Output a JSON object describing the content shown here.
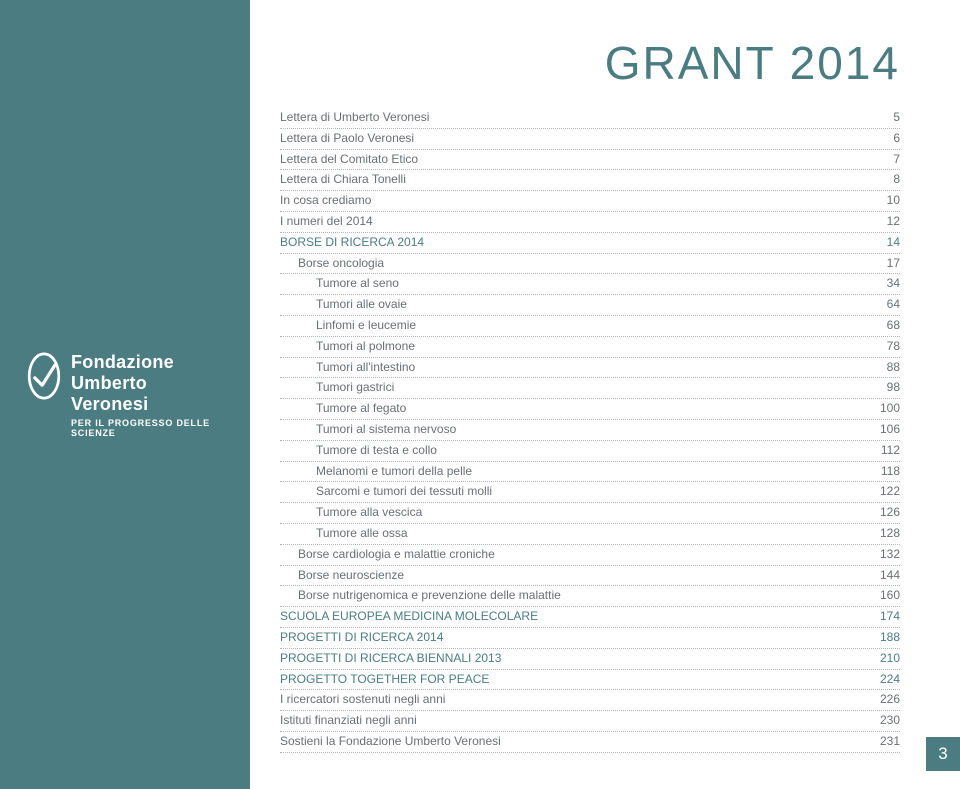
{
  "colors": {
    "teal": "#4a7c82",
    "white": "#ffffff",
    "text_gray": "#6a6f73",
    "dot_gray": "#b0b7bb"
  },
  "title": "GRANT 2014",
  "page_number": "3",
  "logo": {
    "line1": "Fondazione",
    "line2": "Umberto Veronesi",
    "tagline": "PER IL PROGRESSO DELLE SCIENZE"
  },
  "toc": [
    {
      "label": "Lettera di Umberto Veronesi",
      "page": "5",
      "level": 0,
      "teal": false
    },
    {
      "label": "Lettera di Paolo Veronesi",
      "page": "6",
      "level": 0,
      "teal": false
    },
    {
      "label": "Lettera del Comitato Etico",
      "page": "7",
      "level": 0,
      "teal": false
    },
    {
      "label": "Lettera di Chiara Tonelli",
      "page": "8",
      "level": 0,
      "teal": false
    },
    {
      "label": "In cosa crediamo",
      "page": "10",
      "level": 0,
      "teal": false
    },
    {
      "label": "I numeri del 2014",
      "page": "12",
      "level": 0,
      "teal": false
    },
    {
      "label": "BORSE DI RICERCA 2014",
      "page": "14",
      "level": 0,
      "teal": true
    },
    {
      "label": "Borse oncologia",
      "page": "17",
      "level": 1,
      "teal": false
    },
    {
      "label": "Tumore al seno",
      "page": "34",
      "level": 2,
      "teal": false
    },
    {
      "label": "Tumori alle ovaie",
      "page": "64",
      "level": 2,
      "teal": false
    },
    {
      "label": "Linfomi e leucemie",
      "page": "68",
      "level": 2,
      "teal": false
    },
    {
      "label": "Tumori al polmone",
      "page": "78",
      "level": 2,
      "teal": false
    },
    {
      "label": "Tumori all'intestino",
      "page": "88",
      "level": 2,
      "teal": false
    },
    {
      "label": "Tumori gastrici",
      "page": "98",
      "level": 2,
      "teal": false
    },
    {
      "label": "Tumore al fegato",
      "page": "100",
      "level": 2,
      "teal": false
    },
    {
      "label": "Tumori al sistema nervoso",
      "page": "106",
      "level": 2,
      "teal": false
    },
    {
      "label": "Tumore di testa e collo",
      "page": "112",
      "level": 2,
      "teal": false
    },
    {
      "label": "Melanomi e tumori della pelle",
      "page": "118",
      "level": 2,
      "teal": false
    },
    {
      "label": "Sarcomi e tumori dei tessuti molli",
      "page": "122",
      "level": 2,
      "teal": false
    },
    {
      "label": "Tumore alla vescica",
      "page": "126",
      "level": 2,
      "teal": false
    },
    {
      "label": "Tumore alle ossa",
      "page": "128",
      "level": 2,
      "teal": false
    },
    {
      "label": "Borse cardiologia e malattie croniche",
      "page": "132",
      "level": 1,
      "teal": false
    },
    {
      "label": "Borse neuroscienze",
      "page": "144",
      "level": 1,
      "teal": false
    },
    {
      "label": "Borse nutrigenomica e prevenzione delle malattie",
      "page": "160",
      "level": 1,
      "teal": false
    },
    {
      "label": "SCUOLA EUROPEA MEDICINA MOLECOLARE",
      "page": "174",
      "level": 0,
      "teal": true
    },
    {
      "label": "PROGETTI DI RICERCA 2014",
      "page": "188",
      "level": 0,
      "teal": true
    },
    {
      "label": "PROGETTI DI RICERCA BIENNALI 2013",
      "page": "210",
      "level": 0,
      "teal": true
    },
    {
      "label": "PROGETTO TOGETHER FOR PEACE",
      "page": "224",
      "level": 0,
      "teal": true
    },
    {
      "label": "I ricercatori sostenuti negli anni",
      "page": "226",
      "level": 0,
      "teal": false
    },
    {
      "label": "Istituti finanziati negli anni",
      "page": "230",
      "level": 0,
      "teal": false
    },
    {
      "label": "Sostieni la Fondazione Umberto Veronesi",
      "page": "231",
      "level": 0,
      "teal": false
    }
  ]
}
